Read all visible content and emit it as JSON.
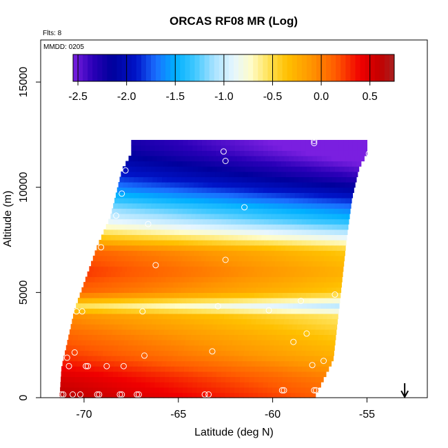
{
  "chart_data": {
    "type": "heatmap",
    "title": "ORCAS RF08 MR (Log)",
    "flights_label": "Flts: 8",
    "date_label": "MMDD: 0205",
    "xlabel": "Latitude (deg N)",
    "ylabel": "Altitude (m)",
    "xlim": [
      -72.3,
      -51.8
    ],
    "ylim": [
      0,
      17000
    ],
    "x_ticks": [
      -70,
      -65,
      -60,
      -55
    ],
    "x_tick_labels": [
      "-70",
      "-65",
      "-60",
      "-55"
    ],
    "y_ticks": [
      0,
      5000,
      10000,
      15000
    ],
    "y_tick_labels": [
      "0",
      "5000",
      "10000",
      "15000"
    ],
    "colorbar": {
      "min": -2.55,
      "max": 0.75,
      "ticks": [
        -2.5,
        -2.0,
        -1.5,
        -1.0,
        -0.5,
        0.0,
        0.5
      ],
      "tick_labels": [
        "-2.5",
        "-2.0",
        "-1.5",
        "-1.0",
        "-0.5",
        "0.0",
        "0.5"
      ],
      "stops": [
        {
          "v": -2.55,
          "c": "#7a1fe0"
        },
        {
          "v": -2.35,
          "c": "#2b00b8"
        },
        {
          "v": -2.15,
          "c": "#00009c"
        },
        {
          "v": -1.9,
          "c": "#0014c8"
        },
        {
          "v": -1.7,
          "c": "#1a6eff"
        },
        {
          "v": -1.5,
          "c": "#00b0ff"
        },
        {
          "v": -1.3,
          "c": "#40c8ff"
        },
        {
          "v": -1.1,
          "c": "#a8e2ff"
        },
        {
          "v": -0.9,
          "c": "#e6f6ff"
        },
        {
          "v": -0.72,
          "c": "#fffcc8"
        },
        {
          "v": -0.55,
          "c": "#ffe35c"
        },
        {
          "v": -0.35,
          "c": "#ffc000"
        },
        {
          "v": -0.1,
          "c": "#ff9500"
        },
        {
          "v": 0.15,
          "c": "#ff5a00"
        },
        {
          "v": 0.4,
          "c": "#f00000"
        },
        {
          "v": 0.6,
          "c": "#c40000"
        },
        {
          "v": 0.75,
          "c": "#a82020"
        }
      ]
    },
    "field_profile": {
      "altitudes_m": [
        0,
        1000,
        2000,
        3000,
        4000,
        4300,
        5000,
        6000,
        7000,
        7500,
        8000,
        8500,
        9000,
        9500,
        10000,
        10500,
        11000,
        11500,
        12000
      ],
      "log_mr_values": [
        0.5,
        0.35,
        0.1,
        -0.05,
        -0.25,
        -0.75,
        -0.05,
        0.1,
        -0.05,
        -0.45,
        -0.8,
        -1.1,
        -1.3,
        -1.55,
        -1.8,
        -2.0,
        -2.15,
        -2.3,
        -2.4
      ]
    },
    "southern_lat_gradient": 0.15,
    "northern_lat_gradient": -0.35,
    "domain_edges": {
      "bottom_alt_m": [
        0,
        1400,
        4200,
        7200,
        8600,
        10800,
        11600
      ],
      "south_lat": [
        -71.3,
        -71.2,
        -70.5,
        -69.3,
        -68.6,
        -68.0,
        -67.5
      ],
      "top_alt_m": [
        0,
        1800,
        5000,
        7500,
        9500,
        11000,
        11600,
        12100
      ],
      "north_lat": [
        -57.8,
        -56.8,
        -56.4,
        -56.1,
        -55.8,
        -55.4,
        -55.0,
        -55.0
      ]
    },
    "observation_points": [
      {
        "lat": -71.2,
        "alt": 150
      },
      {
        "lat": -71.1,
        "alt": 150
      },
      {
        "lat": -70.6,
        "alt": 150
      },
      {
        "lat": -70.2,
        "alt": 150
      },
      {
        "lat": -69.3,
        "alt": 150
      },
      {
        "lat": -69.2,
        "alt": 150
      },
      {
        "lat": -68.1,
        "alt": 150
      },
      {
        "lat": -68.0,
        "alt": 150
      },
      {
        "lat": -67.2,
        "alt": 150
      },
      {
        "lat": -67.1,
        "alt": 150
      },
      {
        "lat": -63.6,
        "alt": 150
      },
      {
        "lat": -63.4,
        "alt": 150
      },
      {
        "lat": -59.5,
        "alt": 350
      },
      {
        "lat": -59.4,
        "alt": 350
      },
      {
        "lat": -57.8,
        "alt": 350
      },
      {
        "lat": -57.7,
        "alt": 350
      },
      {
        "lat": -70.8,
        "alt": 1500
      },
      {
        "lat": -69.9,
        "alt": 1500
      },
      {
        "lat": -69.8,
        "alt": 1500
      },
      {
        "lat": -68.8,
        "alt": 1500
      },
      {
        "lat": -67.9,
        "alt": 1500
      },
      {
        "lat": -70.9,
        "alt": 1900
      },
      {
        "lat": -70.5,
        "alt": 2150
      },
      {
        "lat": -66.8,
        "alt": 2000
      },
      {
        "lat": -63.2,
        "alt": 2200
      },
      {
        "lat": -58.9,
        "alt": 2650
      },
      {
        "lat": -58.2,
        "alt": 3050
      },
      {
        "lat": -57.9,
        "alt": 1550
      },
      {
        "lat": -57.3,
        "alt": 1750
      },
      {
        "lat": -70.4,
        "alt": 4100
      },
      {
        "lat": -70.1,
        "alt": 4100
      },
      {
        "lat": -66.9,
        "alt": 4100
      },
      {
        "lat": -62.9,
        "alt": 4350
      },
      {
        "lat": -60.2,
        "alt": 4150
      },
      {
        "lat": -58.5,
        "alt": 4600
      },
      {
        "lat": -56.7,
        "alt": 4900
      },
      {
        "lat": -66.2,
        "alt": 6300
      },
      {
        "lat": -62.5,
        "alt": 6550
      },
      {
        "lat": -69.1,
        "alt": 7150
      },
      {
        "lat": -66.6,
        "alt": 8250
      },
      {
        "lat": -68.3,
        "alt": 8650
      },
      {
        "lat": -61.5,
        "alt": 9050
      },
      {
        "lat": -68.0,
        "alt": 9700
      },
      {
        "lat": -67.8,
        "alt": 10800
      },
      {
        "lat": -62.5,
        "alt": 11250
      },
      {
        "lat": -62.6,
        "alt": 11700
      },
      {
        "lat": -57.8,
        "alt": 12100
      },
      {
        "lat": -57.8,
        "alt": 12200
      },
      {
        "lat": -54.9,
        "alt": 11600
      }
    ],
    "arrow_marker": {
      "lat": -53.0,
      "direction": "down"
    }
  }
}
